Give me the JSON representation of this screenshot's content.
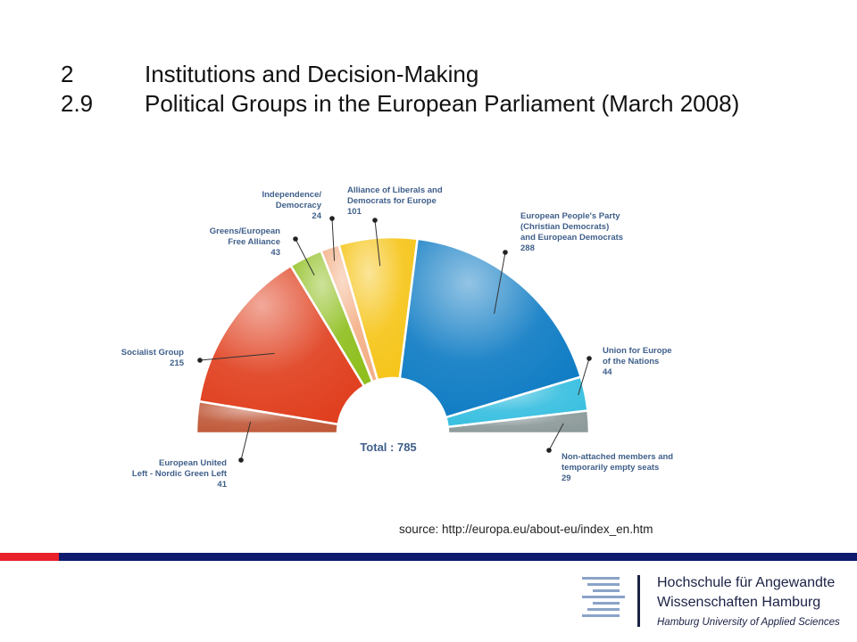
{
  "header": {
    "line1_num": "2",
    "line1_text": "Institutions and Decision-Making",
    "line2_num": "2.9",
    "line2_text": "Political Groups in the European Parliament (March 2008)"
  },
  "chart_data": {
    "type": "pie",
    "subtype": "hemicycle",
    "total_label": "Total : 785",
    "total": 785,
    "slices": [
      {
        "name": "European United Left - Nordic Green Left",
        "label_lines": [
          "European United",
          "Left - Nordic Green Left",
          "41"
        ],
        "value": 41,
        "color": "#c0593a"
      },
      {
        "name": "Socialist Group",
        "label_lines": [
          "Socialist Group",
          "215"
        ],
        "value": 215,
        "color": "#e0401f"
      },
      {
        "name": "Greens/European Free Alliance",
        "label_lines": [
          "Greens/European",
          "Free Alliance",
          "43"
        ],
        "value": 43,
        "color": "#8fbf1f"
      },
      {
        "name": "Independence/ Democracy",
        "label_lines": [
          "Independence/",
          "Democracy",
          "24"
        ],
        "value": 24,
        "color": "#f4b088"
      },
      {
        "name": "Alliance of Liberals and Democrats for Europe",
        "label_lines": [
          "Alliance of Liberals and",
          "Democrats for Europe",
          "101"
        ],
        "value": 101,
        "color": "#f6c51a"
      },
      {
        "name": "European People's Party (Christian Democrats) and European Democrats",
        "label_lines": [
          "European People's Party",
          "(Christian Democrats)",
          "and European Democrats",
          "288"
        ],
        "value": 288,
        "color": "#0f7cc4"
      },
      {
        "name": "Union for Europe of the Nations",
        "label_lines": [
          "Union for Europe",
          "of the Nations",
          "44"
        ],
        "value": 44,
        "color": "#38bfe0"
      },
      {
        "name": "Non-attached members and temporarily empty seats",
        "label_lines": [
          "Non-attached members and",
          "temporarily empty seats",
          "29"
        ],
        "value": 29,
        "color": "#8d9a9a"
      }
    ]
  },
  "source": "source: http://europa.eu/about-eu/index_en.htm",
  "footer": {
    "accent_red": "#e8202a",
    "accent_blue": "#0d1a6e",
    "logo_name_line1": "Hochschule für Angewandte",
    "logo_name_line2": "Wissenschaften Hamburg",
    "logo_name_line3": "Hamburg University of Applied Sciences"
  }
}
